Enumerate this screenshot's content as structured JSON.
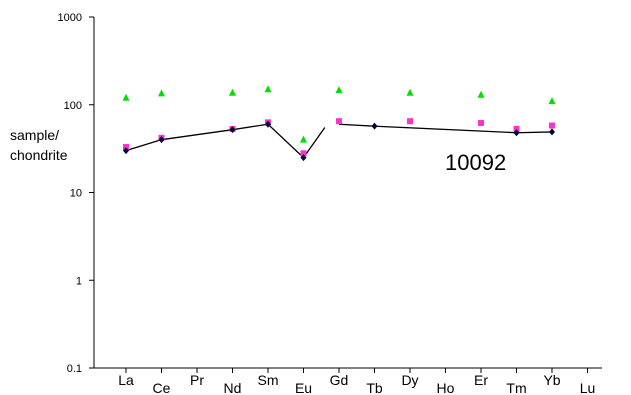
{
  "chart_data": {
    "type": "scatter",
    "yscale": "log",
    "ylim": [
      0.1,
      1000
    ],
    "yticks": [
      "0.1",
      "1",
      "10",
      "100",
      "1000"
    ],
    "ylabel": [
      "sample/",
      "chondrite"
    ],
    "categories": [
      "La",
      "Ce",
      "Pr",
      "Nd",
      "Sm",
      "Eu",
      "Gd",
      "Tb",
      "Dy",
      "Ho",
      "Er",
      "Tm",
      "Yb",
      "Lu"
    ],
    "annotation": "10092",
    "grid": false,
    "series": [
      {
        "marker": "triangle",
        "color": "#00e000",
        "points": [
          {
            "x": "La",
            "y": 120
          },
          {
            "x": "Ce",
            "y": 135
          },
          {
            "x": "Nd",
            "y": 137
          },
          {
            "x": "Sm",
            "y": 150
          },
          {
            "x": "Eu",
            "y": 40
          },
          {
            "x": "Gd",
            "y": 147
          },
          {
            "x": "Dy",
            "y": 137
          },
          {
            "x": "Er",
            "y": 130
          },
          {
            "x": "Yb",
            "y": 110
          }
        ]
      },
      {
        "marker": "square",
        "color": "#ff33cc",
        "points": [
          {
            "x": "La",
            "y": 33
          },
          {
            "x": "Ce",
            "y": 42
          },
          {
            "x": "Nd",
            "y": 53
          },
          {
            "x": "Sm",
            "y": 63
          },
          {
            "x": "Eu",
            "y": 28
          },
          {
            "x": "Gd",
            "y": 65
          },
          {
            "x": "Dy",
            "y": 65
          },
          {
            "x": "Er",
            "y": 62
          },
          {
            "x": "Tm",
            "y": 53
          },
          {
            "x": "Yb",
            "y": 58
          }
        ]
      },
      {
        "marker": "diamond",
        "color": "#000033",
        "line": true,
        "points": [
          {
            "x": "La",
            "y": 30
          },
          {
            "x": "Ce",
            "y": 40
          },
          {
            "x": "Nd",
            "y": 52
          },
          {
            "x": "Sm",
            "y": 60
          },
          {
            "x": "Eu",
            "y": 25
          },
          {
            "x": "Tb",
            "y": 57
          },
          {
            "x": "Tm",
            "y": 48
          },
          {
            "x": "Yb",
            "y": 49
          }
        ],
        "segments": [
          [
            {
              "x": "La",
              "y": 30
            },
            {
              "x": "Ce",
              "y": 40
            },
            {
              "x": "Nd",
              "y": 52
            },
            {
              "x": "Sm",
              "y": 60
            },
            {
              "x": "Eu",
              "y": 25
            },
            {
              "x": "Eu+",
              "y": 55
            }
          ],
          [
            {
              "x": "Gd",
              "y": 60
            },
            {
              "x": "Tb",
              "y": 57
            },
            {
              "x": "Tm",
              "y": 48
            },
            {
              "x": "Yb",
              "y": 49
            }
          ]
        ]
      }
    ]
  }
}
